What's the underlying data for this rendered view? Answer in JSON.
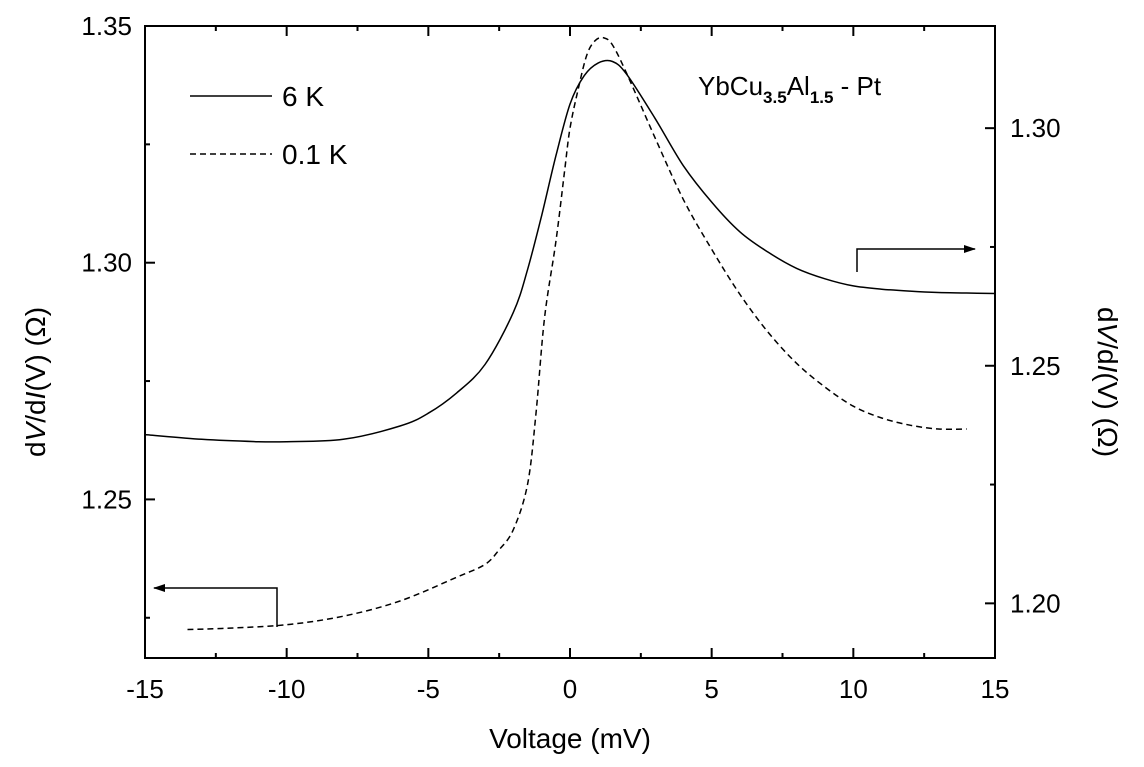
{
  "chart_data": {
    "type": "line",
    "xlabel": "Voltage (mV)",
    "ylabel_left": {
      "prefix": "d",
      "v": "V",
      "mid": "/d",
      "i": "I",
      "suffix": "(V) (Ω)"
    },
    "ylabel_right": {
      "prefix": "d",
      "v": "V",
      "mid": "/d",
      "i": "I",
      "suffix": "(V) (Ω)"
    },
    "xlim": [
      -15,
      15
    ],
    "ylim_left": [
      1.2165,
      1.35
    ],
    "ylim_right": [
      1.1885,
      1.3215
    ],
    "xticks": [
      "-15",
      "-10",
      "-5",
      "0",
      "5",
      "10",
      "15"
    ],
    "yticks_left": [
      "1.25",
      "1.30",
      "1.35"
    ],
    "yticks_right": [
      "1.20",
      "1.25",
      "1.30"
    ],
    "annotation": {
      "main": "YbCu",
      "sub1": "3.5",
      "mid": "Al",
      "sub2": "1.5",
      "tail": " - Pt"
    },
    "series": [
      {
        "name": "6 K",
        "axis": "left",
        "style": "solid",
        "x": [
          -15,
          -13,
          -11,
          -10,
          -8,
          -6,
          -5,
          -4,
          -3,
          -2,
          -1.5,
          -1,
          -0.5,
          0,
          0.5,
          1,
          1.5,
          2,
          3,
          4,
          5,
          6,
          7,
          8,
          9,
          10,
          11,
          12,
          13,
          14,
          15
        ],
        "y": [
          1.2637,
          1.2627,
          1.2622,
          1.2622,
          1.2627,
          1.2655,
          1.2682,
          1.2725,
          1.2785,
          1.2895,
          1.2985,
          1.31,
          1.3225,
          1.3335,
          1.3395,
          1.3422,
          1.3425,
          1.3398,
          1.3305,
          1.3205,
          1.3128,
          1.3065,
          1.3022,
          1.2988,
          1.2966,
          1.2951,
          1.2944,
          1.294,
          1.2937,
          1.2936,
          1.2935
        ]
      },
      {
        "name": "0.1 K",
        "axis": "right",
        "style": "dashed",
        "x": [
          -13.5,
          -12,
          -10,
          -8,
          -6,
          -4,
          -3,
          -2.5,
          -2,
          -1.5,
          -1.2,
          -0.9,
          -0.5,
          -0.2,
          0,
          0.3,
          0.6,
          0.9,
          1.2,
          1.5,
          2,
          3,
          4,
          5,
          6,
          7,
          8,
          9,
          10,
          11,
          12,
          13,
          14
        ],
        "y": [
          1.1945,
          1.1948,
          1.1955,
          1.1973,
          1.2005,
          1.2055,
          1.2082,
          1.2113,
          1.2155,
          1.225,
          1.24,
          1.26,
          1.276,
          1.2905,
          1.3,
          1.3085,
          1.3155,
          1.3185,
          1.319,
          1.3175,
          1.3115,
          1.298,
          1.285,
          1.2745,
          1.265,
          1.257,
          1.2505,
          1.2455,
          1.2415,
          1.239,
          1.2375,
          1.2367,
          1.2367
        ]
      }
    ],
    "legend": [
      {
        "label": "6 K",
        "style": "solid"
      },
      {
        "label": "0.1 K",
        "style": "dashed"
      }
    ],
    "legend_placement": "top-left",
    "grid": false
  }
}
